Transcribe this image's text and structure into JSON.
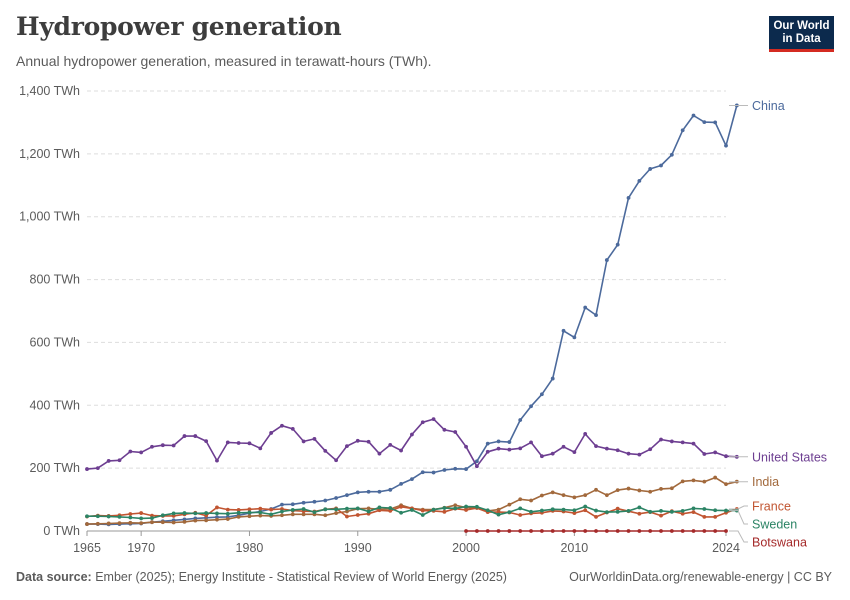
{
  "header": {
    "title": "Hydropower generation",
    "subtitle": "Annual hydropower generation, measured in terawatt-hours (TWh)."
  },
  "logo": {
    "line1": "Our World",
    "line2": "in Data"
  },
  "footer": {
    "source_label": "Data source:",
    "source_text": "Ember (2025); Energy Institute - Statistical Review of World Energy (2025)",
    "right_text": "OurWorldinData.org/renewable-energy | CC BY"
  },
  "colors": {
    "china": "#4c6a9c",
    "united_states": "#6d3e91",
    "india": "#a2693c",
    "france": "#c15531",
    "sweden": "#2c8465",
    "botswana": "#a52a2a"
  },
  "chart_data": {
    "type": "line",
    "ylim": [
      0,
      1400
    ],
    "xlim": [
      1965,
      2024
    ],
    "y_ticks": [
      0,
      200,
      400,
      600,
      800,
      1000,
      1200,
      1400
    ],
    "y_tick_labels": [
      "0 TWh",
      "200 TWh",
      "400 TWh",
      "600 TWh",
      "800 TWh",
      "1,000 TWh",
      "1,200 TWh",
      "1,400 TWh"
    ],
    "x_ticks": [
      1965,
      1970,
      1980,
      1990,
      2000,
      2010,
      2024
    ],
    "x_tick_labels": [
      "1965",
      "1970",
      "1980",
      "1990",
      "2000",
      "2010",
      "2024"
    ],
    "grid": true,
    "series": [
      {
        "name": "China",
        "color": "#4c6a9c",
        "start": 1965,
        "values": [
          22,
          22,
          21,
          22,
          23,
          24,
          28,
          31,
          34,
          37,
          40,
          42,
          44,
          45,
          50,
          57,
          62,
          70,
          84,
          85,
          90,
          93,
          97,
          105,
          114,
          123,
          125,
          125,
          131,
          150,
          165,
          187,
          186,
          194,
          198,
          197,
          222,
          278,
          285,
          283,
          353,
          397,
          435,
          485,
          637,
          616,
          711,
          687,
          862,
          911,
          1060,
          1114,
          1152,
          1163,
          1197,
          1275,
          1322,
          1301,
          1300,
          1226,
          1354
        ]
      },
      {
        "name": "United States",
        "color": "#6d3e91",
        "start": 1965,
        "values": [
          197,
          200,
          223,
          225,
          253,
          250,
          268,
          273,
          272,
          302,
          302,
          286,
          224,
          282,
          280,
          279,
          263,
          312,
          335,
          325,
          285,
          293,
          255,
          225,
          270,
          287,
          284,
          246,
          274,
          256,
          307,
          346,
          356,
          322,
          315,
          268,
          206,
          252,
          262,
          259,
          263,
          282,
          238,
          246,
          268,
          251,
          309,
          270,
          262,
          257,
          246,
          243,
          260,
          291,
          285,
          282,
          278,
          245,
          250,
          238,
          236
        ]
      },
      {
        "name": "India",
        "color": "#a2693c",
        "start": 1965,
        "values": [
          22,
          23,
          24,
          25,
          26,
          25,
          28,
          28,
          27,
          29,
          33,
          34,
          36,
          38,
          45,
          47,
          49,
          48,
          50,
          53,
          53,
          53,
          50,
          57,
          62,
          71,
          72,
          69,
          70,
          82,
          72,
          68,
          68,
          74,
          82,
          74,
          74,
          64,
          68,
          84,
          101,
          97,
          113,
          123,
          114,
          107,
          114,
          131,
          114,
          130,
          135,
          129,
          125,
          134,
          136,
          158,
          161,
          157,
          170,
          149,
          157
        ]
      },
      {
        "name": "France",
        "color": "#c15531",
        "start": 1965,
        "values": [
          46,
          49,
          48,
          50,
          54,
          57,
          49,
          48,
          48,
          53,
          58,
          49,
          75,
          68,
          67,
          69,
          71,
          68,
          70,
          65,
          63,
          62,
          69,
          72,
          46,
          51,
          55,
          66,
          64,
          77,
          72,
          65,
          64,
          61,
          71,
          67,
          73,
          60,
          60,
          59,
          51,
          56,
          58,
          64,
          62,
          57,
          66,
          45,
          59,
          71,
          63,
          55,
          60,
          49,
          63,
          55,
          60,
          45,
          45,
          58,
          70
        ]
      },
      {
        "name": "Sweden",
        "color": "#2c8465",
        "start": 1965,
        "values": [
          47,
          47,
          46,
          45,
          43,
          40,
          41,
          50,
          56,
          57,
          56,
          57,
          56,
          55,
          58,
          59,
          59,
          53,
          62,
          67,
          70,
          60,
          69,
          69,
          71,
          72,
          62,
          75,
          73,
          58,
          67,
          51,
          68,
          73,
          72,
          78,
          77,
          66,
          52,
          60,
          72,
          61,
          65,
          69,
          68,
          66,
          78,
          65,
          60,
          61,
          64,
          75,
          61,
          64,
          61,
          64,
          72,
          70,
          66,
          65,
          65
        ]
      },
      {
        "name": "Botswana",
        "color": "#a52a2a",
        "start": 2000,
        "values": [
          0,
          0,
          0,
          0,
          0,
          0,
          0,
          0,
          0,
          0,
          0,
          0,
          0,
          0,
          0,
          0,
          0,
          0,
          0,
          0,
          0,
          0,
          0,
          0,
          0
        ]
      }
    ]
  }
}
